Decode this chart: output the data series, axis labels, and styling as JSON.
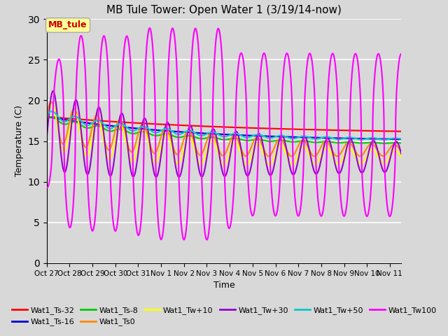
{
  "title": "MB Tule Tower: Open Water 1 (3/19/14-now)",
  "xlabel": "Time",
  "ylabel": "Temperature (C)",
  "ylim": [
    0,
    30
  ],
  "yticks": [
    0,
    5,
    10,
    15,
    20,
    25,
    30
  ],
  "background_color": "#d8d8d8",
  "series": {
    "Wat1_Ts-32": {
      "color": "#ff0000",
      "lw": 1.5
    },
    "Wat1_Ts-16": {
      "color": "#0000cc",
      "lw": 1.5
    },
    "Wat1_Ts-8": {
      "color": "#00cc00",
      "lw": 1.5
    },
    "Wat1_Ts0": {
      "color": "#ff8800",
      "lw": 1.5
    },
    "Wat1_Tw+10": {
      "color": "#ffff00",
      "lw": 1.5
    },
    "Wat1_Tw+30": {
      "color": "#9900cc",
      "lw": 1.5
    },
    "Wat1_Tw+50": {
      "color": "#00cccc",
      "lw": 1.5
    },
    "Wat1_Tw100": {
      "color": "#ff00ff",
      "lw": 1.5
    }
  },
  "tick_labels": [
    "Oct 27",
    "Oct 28",
    "Oct 29",
    "Oct 30",
    "Oct 31",
    "Nov 1",
    "Nov 2",
    "Nov 3",
    "Nov 4",
    "Nov 5",
    "Nov 6",
    "Nov 7",
    "Nov 8",
    "Nov 9",
    "Nov 10",
    "Nov 11"
  ]
}
